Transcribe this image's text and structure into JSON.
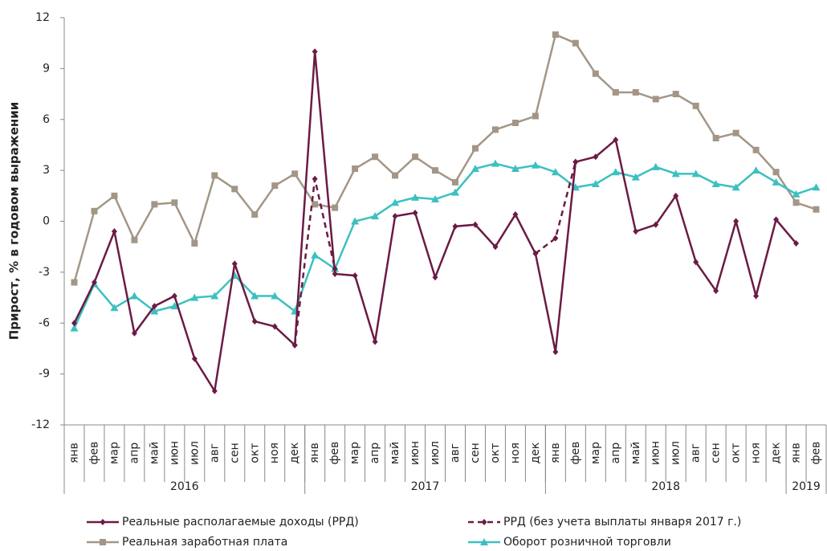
{
  "chart_data": {
    "type": "line",
    "ylabel": "Прирост, % в годовом выражении",
    "groups": [
      {
        "label": "2016",
        "categories": [
          "янв",
          "фев",
          "мар",
          "апр",
          "май",
          "июн",
          "июл",
          "авг",
          "сен",
          "окт",
          "ноя",
          "дек"
        ]
      },
      {
        "label": "2017",
        "categories": [
          "янв",
          "фев",
          "мар",
          "апр",
          "май",
          "июн",
          "июл",
          "авг",
          "сен",
          "окт",
          "ноя",
          "дек"
        ]
      },
      {
        "label": "2018",
        "categories": [
          "янв",
          "фев",
          "мар",
          "апр",
          "май",
          "июн",
          "июл",
          "авг",
          "сен",
          "окт",
          "ноя",
          "дек"
        ]
      },
      {
        "label": "2019",
        "categories": [
          "янв",
          "фев"
        ]
      }
    ],
    "ylim": [
      -12,
      12
    ],
    "yticks": [
      -12,
      -9,
      -6,
      -3,
      0,
      3,
      6,
      9,
      12
    ],
    "series": [
      {
        "name": "Реальные располагаемые доходы (РРД)",
        "color": "#6b1b45",
        "marker": "diamond",
        "dash": false,
        "values": [
          -6.0,
          -3.6,
          -0.6,
          -6.6,
          -5.0,
          -4.4,
          -8.1,
          -10.0,
          -2.5,
          -5.9,
          -6.2,
          -7.3,
          10.0,
          -3.1,
          -3.2,
          -7.1,
          0.3,
          0.5,
          -3.3,
          -0.3,
          -0.2,
          -1.5,
          0.4,
          -1.9,
          -7.7,
          3.5,
          3.8,
          4.8,
          -0.6,
          -0.2,
          1.5,
          -2.4,
          -4.1,
          0.0,
          -4.4,
          0.1,
          -1.3,
          null
        ]
      },
      {
        "name": "РРД (без учета выплаты января 2017 г.)",
        "color": "#6b1b45",
        "marker": "diamond",
        "dash": true,
        "values": [
          null,
          null,
          null,
          null,
          null,
          null,
          null,
          null,
          null,
          null,
          null,
          -7.3,
          2.5,
          -2.8,
          null,
          null,
          null,
          null,
          null,
          null,
          null,
          null,
          null,
          -1.9,
          -1.0,
          3.5,
          null,
          null,
          null,
          null,
          null,
          null,
          null,
          null,
          null,
          null,
          null,
          null
        ]
      },
      {
        "name": "Реальная заработная плата",
        "color": "#a39687",
        "marker": "square",
        "dash": false,
        "values": [
          -3.6,
          0.6,
          1.5,
          -1.1,
          1.0,
          1.1,
          -1.3,
          2.7,
          1.9,
          0.4,
          2.1,
          2.8,
          1.0,
          0.8,
          3.1,
          3.8,
          2.7,
          3.8,
          3.0,
          2.3,
          4.3,
          5.4,
          5.8,
          6.2,
          11.0,
          10.5,
          8.7,
          7.6,
          7.6,
          7.2,
          7.5,
          6.8,
          4.9,
          5.2,
          4.2,
          2.9,
          1.1,
          0.7
        ]
      },
      {
        "name": "Оборот розничной торговли",
        "color": "#3cc0c0",
        "marker": "triangle",
        "dash": false,
        "values": [
          -6.3,
          -3.7,
          -5.1,
          -4.4,
          -5.3,
          -5.0,
          -4.5,
          -4.4,
          -3.2,
          -4.4,
          -4.4,
          -5.3,
          -2.0,
          -2.8,
          0.0,
          0.3,
          1.1,
          1.4,
          1.3,
          1.7,
          3.1,
          3.4,
          3.1,
          3.3,
          2.9,
          2.0,
          2.2,
          2.9,
          2.6,
          3.2,
          2.8,
          2.8,
          2.2,
          2.0,
          3.0,
          2.3,
          1.6,
          2.0
        ]
      }
    ]
  }
}
